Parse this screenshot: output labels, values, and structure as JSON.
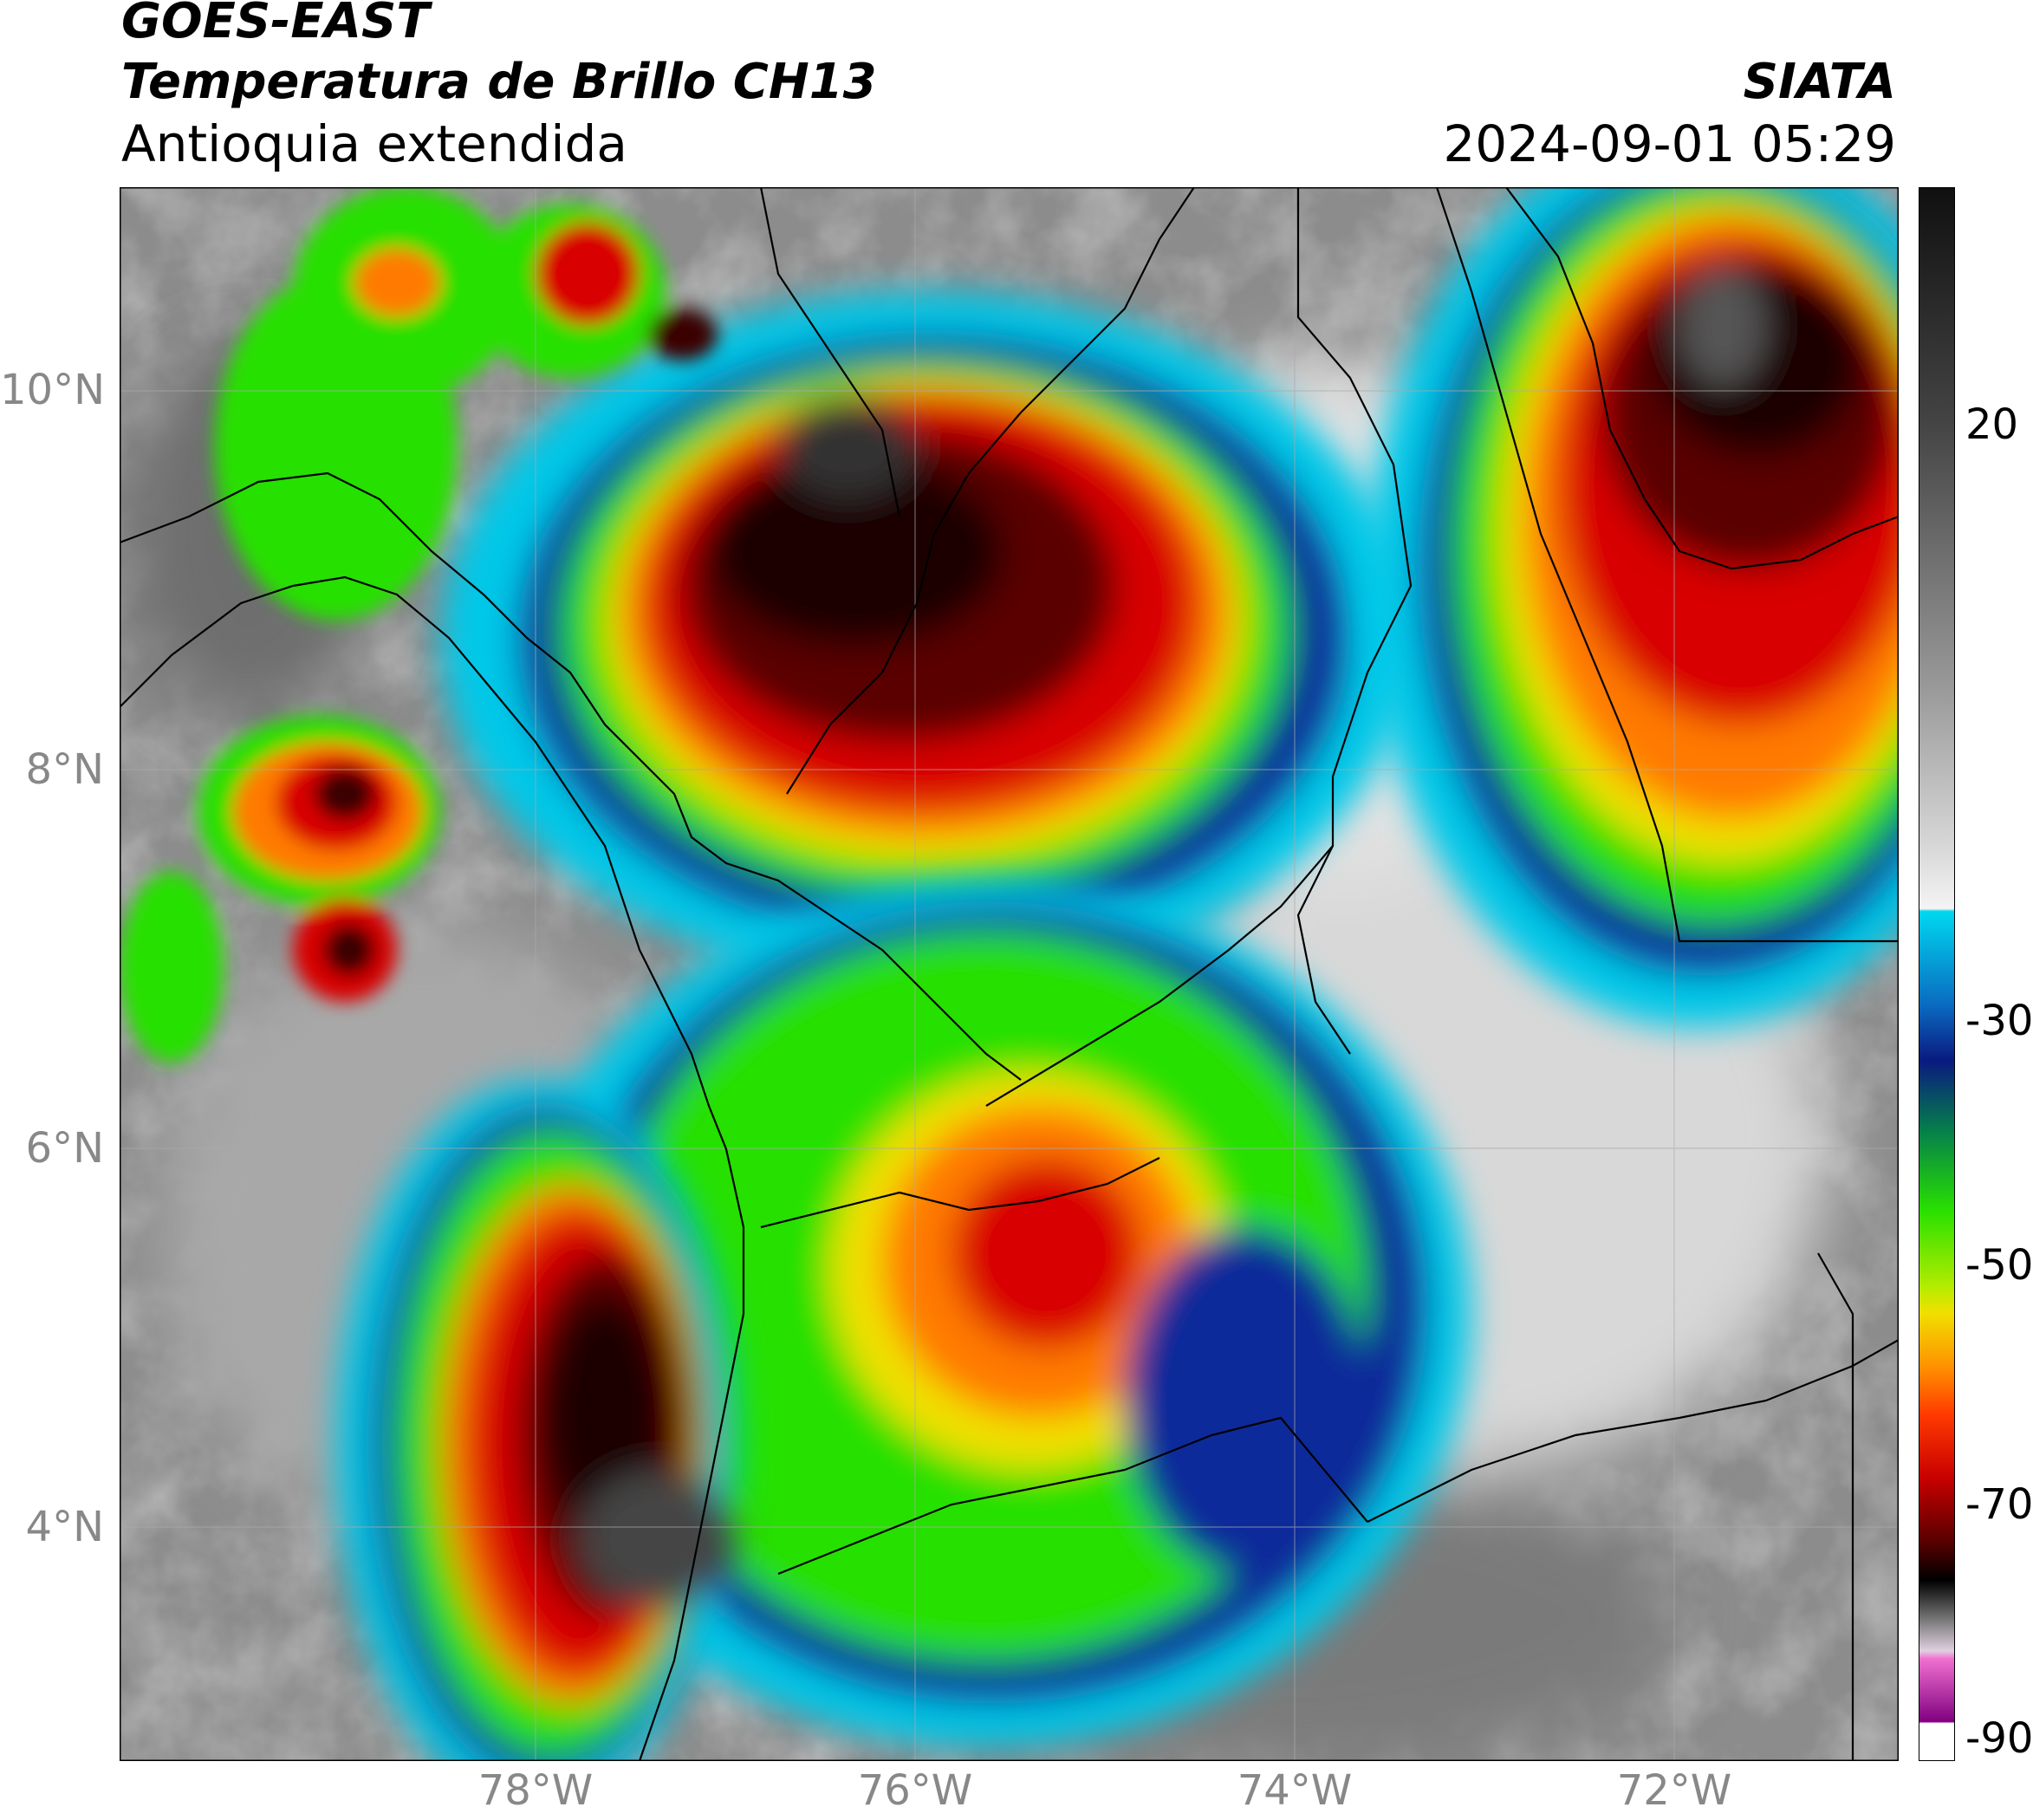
{
  "header": {
    "title_line1": "GOES-EAST",
    "title_line2": "Temperatura de Brillo CH13",
    "subtitle": "Antioquia extendida",
    "organization": "SIATA",
    "timestamp": "2024-09-01 05:29"
  },
  "axes": {
    "lat_labels": [
      "10°N",
      "8°N",
      "6°N",
      "4°N"
    ],
    "lon_labels": [
      "78°W",
      "76°W",
      "74°W",
      "72°W"
    ]
  },
  "colorbar": {
    "tick_labels": [
      "20",
      "-30",
      "-50",
      "-70",
      "-90"
    ],
    "colors": {
      "warm_gray": "#7a7a7a",
      "cyan": "#00c8e8",
      "blue": "#0a2a9a",
      "green": "#28e000",
      "yellow": "#f0e000",
      "orange": "#ff7a00",
      "red": "#d80000",
      "dark_red": "#5a0000",
      "black": "#000000",
      "magenta": "#c020a0",
      "white": "#ffffff"
    }
  }
}
